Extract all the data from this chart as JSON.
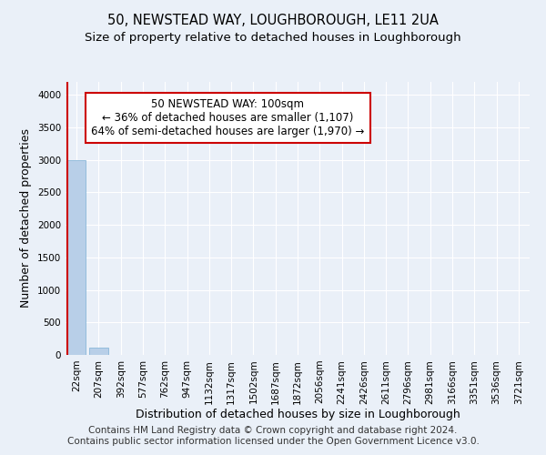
{
  "title": "50, NEWSTEAD WAY, LOUGHBOROUGH, LE11 2UA",
  "subtitle": "Size of property relative to detached houses in Loughborough",
  "xlabel": "Distribution of detached houses by size in Loughborough",
  "ylabel": "Number of detached properties",
  "footer_line1": "Contains HM Land Registry data © Crown copyright and database right 2024.",
  "footer_line2": "Contains public sector information licensed under the Open Government Licence v3.0.",
  "annotation_line1": "50 NEWSTEAD WAY: 100sqm",
  "annotation_line2": "← 36% of detached houses are smaller (1,107)",
  "annotation_line3": "64% of semi-detached houses are larger (1,970) →",
  "bar_heights": [
    3000,
    110,
    0,
    0,
    0,
    0,
    0,
    0,
    0,
    0,
    0,
    0,
    0,
    0,
    0,
    0,
    0,
    0,
    0,
    0,
    0
  ],
  "categories": [
    "22sqm",
    "207sqm",
    "392sqm",
    "577sqm",
    "762sqm",
    "947sqm",
    "1132sqm",
    "1317sqm",
    "1502sqm",
    "1687sqm",
    "1872sqm",
    "2056sqm",
    "2241sqm",
    "2426sqm",
    "2611sqm",
    "2796sqm",
    "2981sqm",
    "3166sqm",
    "3351sqm",
    "3536sqm",
    "3721sqm"
  ],
  "ylim": [
    0,
    4200
  ],
  "yticks": [
    0,
    500,
    1000,
    1500,
    2000,
    2500,
    3000,
    3500,
    4000
  ],
  "background_color": "#eaf0f8",
  "bar_fill_color": "#b8cfe8",
  "bar_edge_color": "#7aafd4",
  "annotation_box_color": "#ffffff",
  "annotation_box_border": "#cc0000",
  "red_line_color": "#cc0000",
  "grid_color": "#ffffff",
  "title_fontsize": 10.5,
  "subtitle_fontsize": 9.5,
  "axis_label_fontsize": 9,
  "tick_fontsize": 7.5,
  "footer_fontsize": 7.5,
  "annotation_fontsize": 8.5
}
